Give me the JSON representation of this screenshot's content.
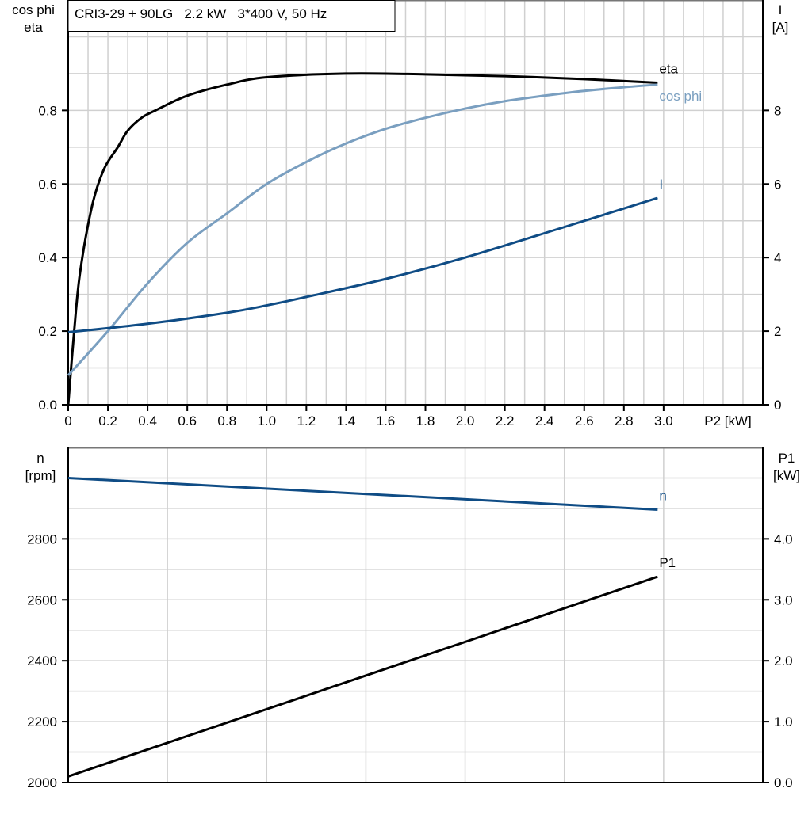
{
  "chart_data": [
    {
      "type": "line",
      "title": "CRI3-29 + 90LG   2.2 kW   3*400 V, 50 Hz",
      "xlabel": "P2 [kW]",
      "ylabel_left": [
        "cos phi",
        "eta"
      ],
      "ylabel_right": [
        "I",
        "[A]"
      ],
      "xlim": [
        0,
        3.5
      ],
      "ylim_left": [
        0,
        1.1
      ],
      "ylim_right": [
        0,
        11
      ],
      "grid": true,
      "x_ticks": [
        "0",
        "0.2",
        "0.4",
        "0.6",
        "0.8",
        "1.0",
        "1.2",
        "1.4",
        "1.6",
        "1.8",
        "2.0",
        "2.2",
        "2.4",
        "2.6",
        "2.8",
        "3.0"
      ],
      "y_ticks_left": [
        "0.0",
        "0.2",
        "0.4",
        "0.6",
        "0.8"
      ],
      "y_ticks_right": [
        "0",
        "2",
        "4",
        "6",
        "8"
      ],
      "series": [
        {
          "name": "eta",
          "axis": "left",
          "color": "#000000",
          "x": [
            0,
            0.03,
            0.06,
            0.12,
            0.18,
            0.25,
            0.3,
            0.37,
            0.44,
            0.6,
            0.8,
            1.0,
            1.4,
            1.8,
            2.2,
            2.6,
            2.97
          ],
          "y": [
            0,
            0.2,
            0.36,
            0.54,
            0.64,
            0.7,
            0.745,
            0.78,
            0.8,
            0.84,
            0.87,
            0.89,
            0.9,
            0.898,
            0.893,
            0.885,
            0.875
          ]
        },
        {
          "name": "cos phi",
          "axis": "left",
          "color": "#7a9fc0",
          "x": [
            0,
            0.2,
            0.4,
            0.6,
            0.8,
            1.0,
            1.2,
            1.4,
            1.6,
            1.8,
            2.0,
            2.2,
            2.4,
            2.6,
            2.8,
            2.97
          ],
          "y": [
            0.08,
            0.2,
            0.33,
            0.44,
            0.52,
            0.6,
            0.66,
            0.71,
            0.75,
            0.78,
            0.805,
            0.825,
            0.84,
            0.853,
            0.863,
            0.87
          ]
        },
        {
          "name": "I",
          "axis": "right",
          "color": "#0f4c85",
          "x": [
            0,
            0.4,
            0.8,
            1.0,
            1.2,
            1.6,
            2.0,
            2.5,
            2.97
          ],
          "y": [
            1.97,
            2.2,
            2.5,
            2.7,
            2.93,
            3.42,
            4.0,
            4.83,
            5.62
          ]
        }
      ]
    },
    {
      "type": "line",
      "ylabel_left": [
        "n",
        "[rpm]"
      ],
      "ylabel_right": [
        "P1",
        "[kW]"
      ],
      "xlim": [
        0,
        3.5
      ],
      "ylim_left": [
        2000,
        3100
      ],
      "ylim_right": [
        0,
        5.5
      ],
      "grid": true,
      "y_ticks_left": [
        "2000",
        "2200",
        "2400",
        "2600",
        "2800"
      ],
      "y_ticks_right": [
        "0.0",
        "1.0",
        "2.0",
        "3.0",
        "4.0"
      ],
      "series": [
        {
          "name": "n",
          "axis": "left",
          "color": "#0f4c85",
          "x": [
            0,
            2.97
          ],
          "y": [
            3000,
            2896
          ]
        },
        {
          "name": "P1",
          "axis": "right",
          "color": "#000000",
          "x": [
            0,
            2.97
          ],
          "y": [
            0.1,
            3.38
          ]
        }
      ]
    }
  ]
}
